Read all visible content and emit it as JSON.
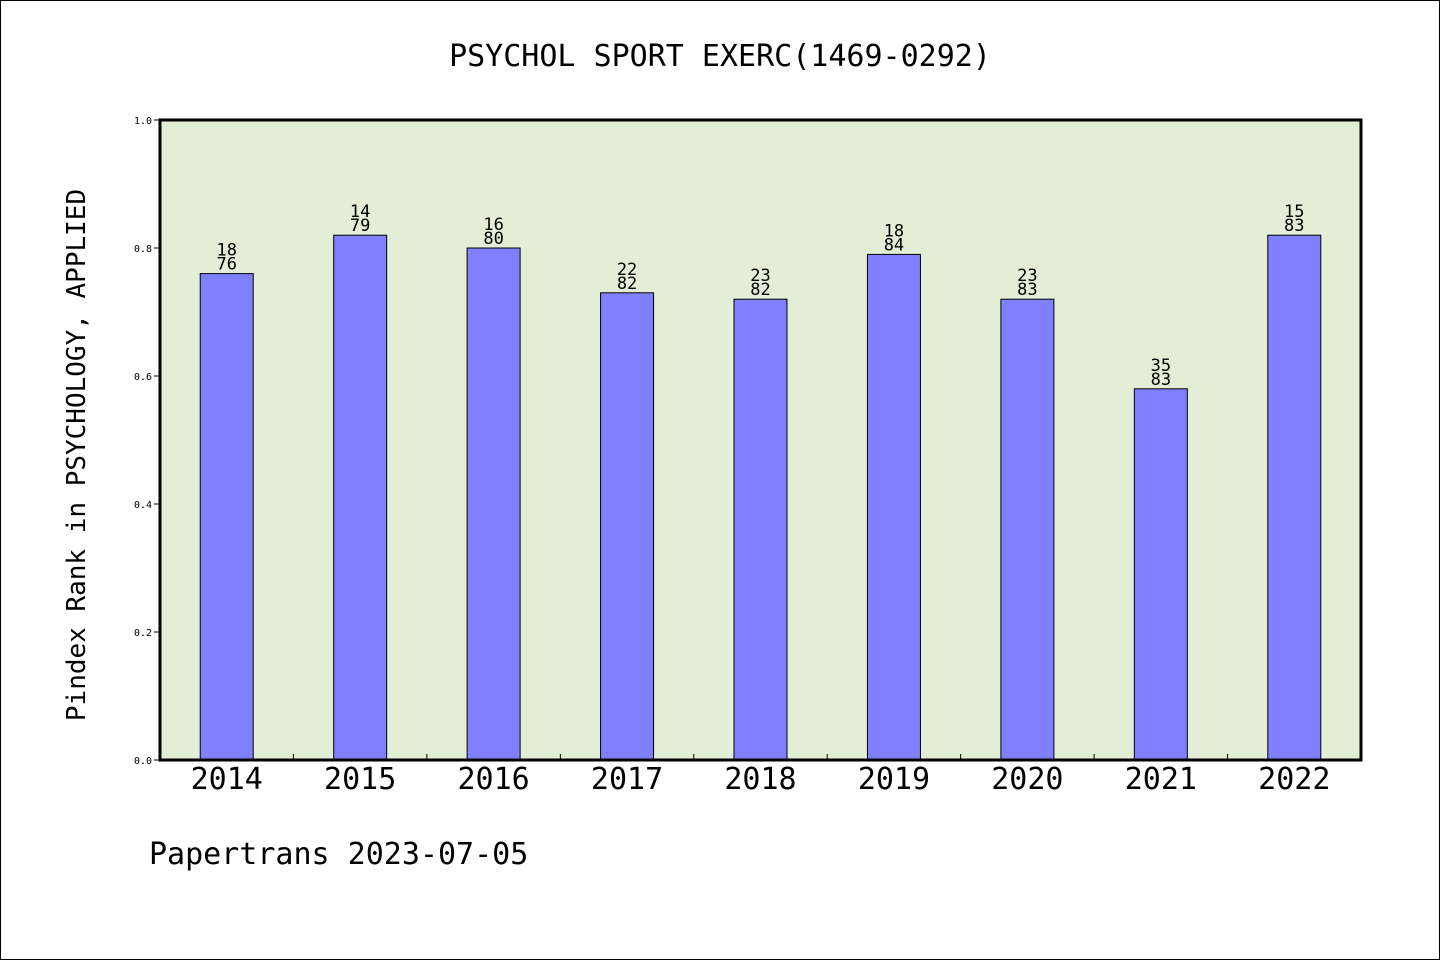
{
  "chart_data": {
    "type": "bar",
    "title": "PSYCHOL SPORT EXERC(1469-0292)",
    "xlabel": "",
    "ylabel": "Pindex Rank in PSYCHOLOGY, APPLIED",
    "categories": [
      "2014",
      "2015",
      "2016",
      "2017",
      "2018",
      "2019",
      "2020",
      "2021",
      "2022"
    ],
    "values": [
      0.76,
      0.82,
      0.8,
      0.73,
      0.72,
      0.79,
      0.72,
      0.58,
      0.82
    ],
    "labels": [
      [
        "18",
        "76"
      ],
      [
        "14",
        "79"
      ],
      [
        "16",
        "80"
      ],
      [
        "22",
        "82"
      ],
      [
        "23",
        "82"
      ],
      [
        "18",
        "84"
      ],
      [
        "23",
        "83"
      ],
      [
        "35",
        "83"
      ],
      [
        "15",
        "83"
      ]
    ],
    "ylim": [
      0,
      1.0
    ],
    "yticks": [
      "0.0",
      "0.2",
      "0.4",
      "0.6",
      "0.8",
      "1.0"
    ],
    "grid": false,
    "legend": "none",
    "colors": {
      "bar": "#8080ff",
      "plot_bg": "#e2efd6",
      "axis": "#000000"
    }
  },
  "footer": "Papertrans 2023-07-05"
}
